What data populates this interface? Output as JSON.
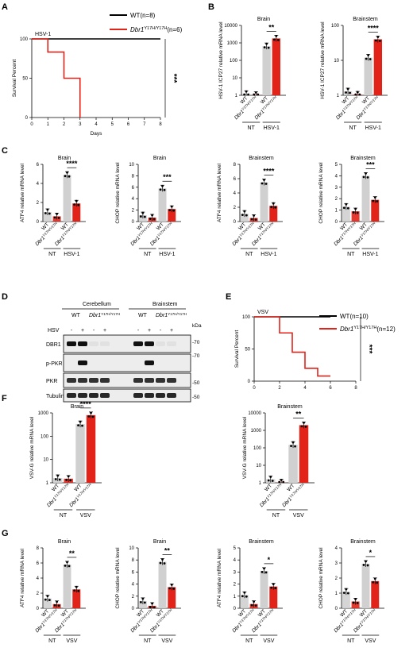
{
  "panels": {
    "A": "A",
    "B": "B",
    "C": "C",
    "D": "D",
    "E": "E",
    "F": "F",
    "G": "G"
  },
  "labels": {
    "wt": "WT",
    "mut": "Dbr1",
    "mut_sup": "Y17H/Y17H",
    "nt": "NT",
    "hsv": "HSV-1",
    "vsv": "VSV",
    "brain": "Brain",
    "brainstem": "Brainstem",
    "cerebellum": "Cerebellum",
    "survival": "Survival Percent",
    "days": "Days",
    "hsv_plot": "HSV-1",
    "vsv_plot": "VSV",
    "kda": "kDa",
    "hsv_row": "HSV",
    "minus": "-",
    "plus": "+",
    "m70": "-70",
    "m50": "-50"
  },
  "legend": {
    "A": {
      "wt": "WT(n=8)",
      "mut": "Dbr1",
      "mut_sup": "Y17H/Y17H",
      "mut_n": "(n=6)"
    },
    "E": {
      "wt": "WT(n=10)",
      "mut": "Dbr1",
      "mut_sup": "Y17H/Y17H",
      "mut_n": "(n=12)"
    }
  },
  "blot": {
    "rows": [
      "DBR1",
      "p-PKR",
      "PKR",
      "Tubulin"
    ]
  },
  "colors": {
    "wt": "#d0d0d0",
    "mut": "#e2231a",
    "line_wt": "#000000",
    "line_mut": "#e2231a"
  },
  "chart_data": [
    {
      "id": "A",
      "type": "line",
      "title": "HSV-1",
      "xlabel": "Days",
      "ylabel": "Survival Percent",
      "xlim": [
        0,
        8
      ],
      "ylim": [
        0,
        100
      ],
      "xticks": [
        0,
        1,
        2,
        3,
        4,
        5,
        6,
        7,
        8
      ],
      "yticks": [
        0,
        50,
        100
      ],
      "series": [
        {
          "name": "WT(n=8)",
          "step": [
            [
              0,
              100
            ],
            [
              8,
              100
            ]
          ]
        },
        {
          "name": "Dbr1 Y17H/Y17H(n=6)",
          "step": [
            [
              0,
              100
            ],
            [
              1,
              100
            ],
            [
              1,
              83.3
            ],
            [
              2,
              83.3
            ],
            [
              2,
              50
            ],
            [
              3,
              50
            ],
            [
              3,
              0
            ]
          ]
        }
      ],
      "significance": "***"
    },
    {
      "id": "B1",
      "type": "bar",
      "title": "Brain",
      "ylabel": "HSV-1 ICP27 relative mRNA level",
      "scale": "log",
      "ylim": [
        1,
        10000
      ],
      "yticks": [
        1,
        10,
        100,
        1000,
        10000
      ],
      "values": [
        1.2,
        1.05,
        650,
        1800
      ],
      "sig": "**"
    },
    {
      "id": "B2",
      "type": "bar",
      "title": "Brainstem",
      "ylabel": "HSV-1 ICP27 relative mRNA level",
      "scale": "log",
      "ylim": [
        1,
        100
      ],
      "yticks": [
        1,
        10,
        100
      ],
      "values": [
        1.3,
        1.05,
        12,
        40
      ],
      "sig": "****"
    },
    {
      "id": "C1",
      "type": "bar",
      "title": "Brain",
      "ylabel": "ATF4 relative mRNA level",
      "ylim": [
        0,
        6
      ],
      "yticks": [
        0,
        2,
        4,
        6
      ],
      "values": [
        1.0,
        0.55,
        4.9,
        1.9
      ],
      "sig": "****"
    },
    {
      "id": "C2",
      "type": "bar",
      "title": "Brain",
      "ylabel": "CHOP relative  mRNA level",
      "ylim": [
        0,
        10
      ],
      "yticks": [
        0,
        2,
        4,
        6,
        8,
        10
      ],
      "values": [
        1.1,
        0.7,
        5.8,
        2.2
      ],
      "sig": "***"
    },
    {
      "id": "C3",
      "type": "bar",
      "title": "Brainstem",
      "ylabel": "ATF4 relative mRNA level",
      "ylim": [
        0,
        8
      ],
      "yticks": [
        0,
        2,
        4,
        6,
        8
      ],
      "values": [
        1.1,
        0.5,
        5.5,
        2.2
      ],
      "sig": "****"
    },
    {
      "id": "C4",
      "type": "bar",
      "title": "Brainstem",
      "ylabel": "CHOP relative  mRNA level",
      "ylim": [
        0,
        5
      ],
      "yticks": [
        0,
        1,
        2,
        3,
        4,
        5
      ],
      "values": [
        1.3,
        0.9,
        4.0,
        1.9
      ],
      "sig": "***"
    },
    {
      "id": "E",
      "type": "line",
      "title": "VSV",
      "ylabel": "Survival Percent",
      "xlim": [
        0,
        8
      ],
      "ylim": [
        0,
        100
      ],
      "xticks": [
        0,
        2,
        4,
        6,
        8
      ],
      "yticks": [
        0,
        50,
        100
      ],
      "series": [
        {
          "name": "WT(n=10)",
          "step": [
            [
              0,
              100
            ],
            [
              6,
              100
            ]
          ]
        },
        {
          "name": "Dbr1 Y17H/Y17H(n=12)",
          "step": [
            [
              0,
              100
            ],
            [
              2,
              100
            ],
            [
              2,
              75
            ],
            [
              3,
              75
            ],
            [
              3,
              45
            ],
            [
              4,
              45
            ],
            [
              4,
              20
            ],
            [
              5,
              20
            ],
            [
              5,
              8
            ],
            [
              6,
              8
            ]
          ]
        }
      ],
      "significance": "***"
    },
    {
      "id": "F1",
      "type": "bar",
      "title": "Brain",
      "ylabel": "VSV-G relative mRNA level",
      "scale": "log",
      "ylim": [
        1,
        1000
      ],
      "yticks": [
        1,
        10,
        100,
        1000
      ],
      "values": [
        1.6,
        1.5,
        330,
        800
      ],
      "sig": "****"
    },
    {
      "id": "F2",
      "type": "bar",
      "title": "Brainstem",
      "ylabel": "VSV-G relative mRNA level",
      "scale": "log",
      "ylim": [
        1,
        10000
      ],
      "yticks": [
        1,
        10,
        100,
        1000,
        10000
      ],
      "values": [
        1.6,
        1.05,
        150,
        2000
      ],
      "sig": "**"
    },
    {
      "id": "G1",
      "type": "bar",
      "title": "Brain",
      "ylabel": "ATF4 relative mRNA level",
      "ylim": [
        0,
        8
      ],
      "yticks": [
        0,
        2,
        4,
        6,
        8
      ],
      "values": [
        1.3,
        0.55,
        5.8,
        2.5
      ],
      "sig": "**"
    },
    {
      "id": "G2",
      "type": "bar",
      "title": "Brain",
      "ylabel": "CHOP relative mRNA level",
      "ylim": [
        0,
        10
      ],
      "yticks": [
        0,
        2,
        4,
        6,
        8,
        10
      ],
      "values": [
        1.2,
        0.4,
        7.7,
        3.5
      ],
      "sig": "**"
    },
    {
      "id": "G3",
      "type": "bar",
      "title": "Brainstem",
      "ylabel": "ATF4 relative mRNA level",
      "ylim": [
        0,
        5
      ],
      "yticks": [
        0,
        1,
        2,
        3,
        4,
        5
      ],
      "values": [
        1.1,
        0.35,
        3.1,
        1.8
      ],
      "sig": "*"
    },
    {
      "id": "G4",
      "type": "bar",
      "title": "Brainstem",
      "ylabel": "CHOP relative mRNA level",
      "ylim": [
        0,
        4
      ],
      "yticks": [
        0,
        1,
        2,
        3,
        4
      ],
      "values": [
        1.1,
        0.45,
        2.95,
        1.8
      ],
      "sig": "*"
    }
  ]
}
